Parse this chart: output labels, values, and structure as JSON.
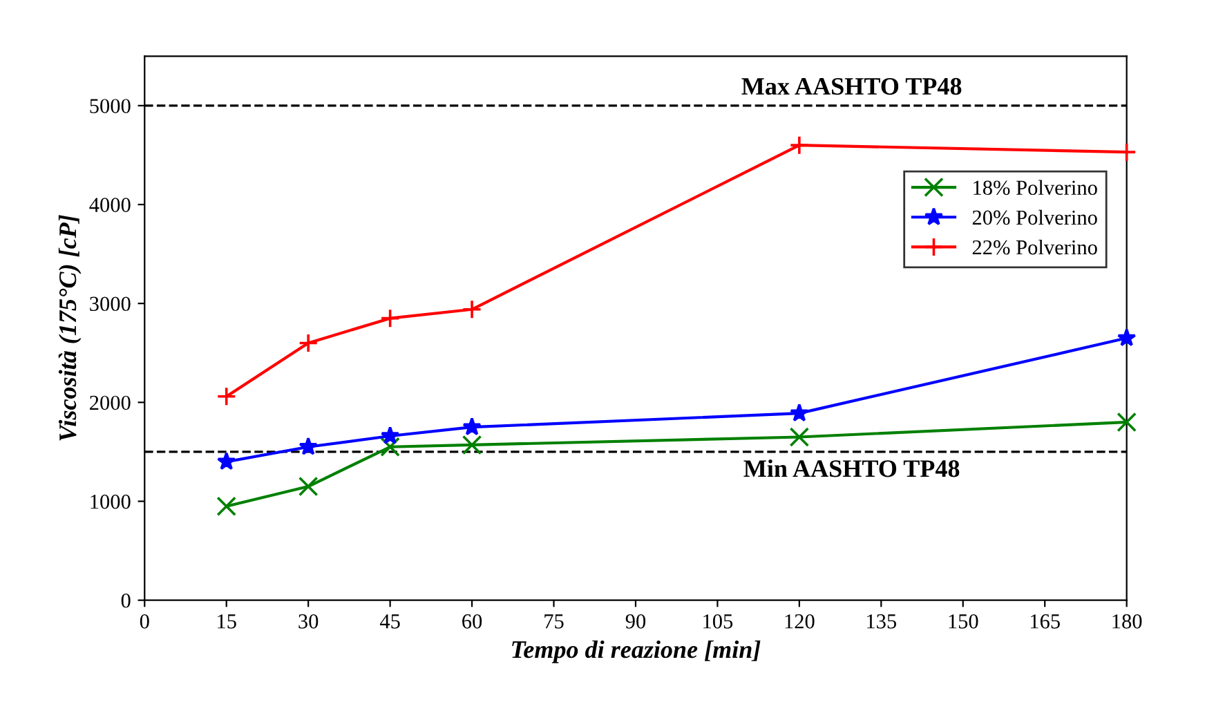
{
  "chart_data": {
    "type": "line",
    "xlabel": "Tempo di reazione [min]",
    "ylabel": "Viscosità (175°C) [cP]",
    "x": [
      15,
      30,
      45,
      60,
      120,
      180
    ],
    "series": [
      {
        "name": "18% Polverino",
        "color": "#008000",
        "marker": "cross",
        "values": [
          950,
          1150,
          1550,
          1570,
          1650,
          1800
        ]
      },
      {
        "name": "20% Polverino",
        "color": "#0000ff",
        "marker": "star",
        "values": [
          1400,
          1550,
          1660,
          1750,
          1890,
          2650
        ]
      },
      {
        "name": "22% Polverino",
        "color": "#ff0000",
        "marker": "plus",
        "values": [
          2060,
          2600,
          2850,
          2940,
          4600,
          4530
        ]
      }
    ],
    "xlim": [
      0,
      180
    ],
    "xticks": [
      0,
      15,
      30,
      45,
      60,
      75,
      90,
      105,
      120,
      135,
      150,
      165,
      180
    ],
    "ylim": [
      0,
      5500
    ],
    "yticks": [
      0,
      1000,
      2000,
      3000,
      4000,
      5000
    ],
    "ref_lines": [
      {
        "axis": "y",
        "value": 5000,
        "label": "Max AASHTO TP48",
        "color": "#000000",
        "line_style": "dashed"
      },
      {
        "axis": "y",
        "value": 1500,
        "label": "Min AASHTO TP48",
        "color": "#000000",
        "line_style": "dashed"
      }
    ],
    "grid": false,
    "legend": "right",
    "line_style": "solid"
  }
}
